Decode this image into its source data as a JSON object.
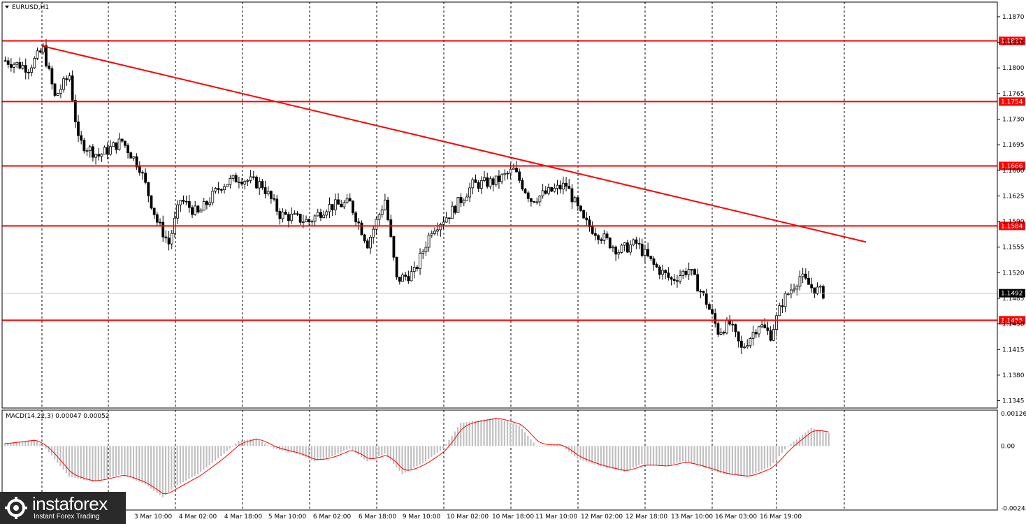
{
  "window": {
    "symbol_title": "EURUSD,H1",
    "current_price": "1.1492"
  },
  "colors": {
    "background": "#ffffff",
    "candle": "#000000",
    "level_line": "#ff0000",
    "trend_line": "#ff0000",
    "grid": "#000000",
    "price_tag_bg": "#ff0000",
    "current_tag_bg": "#000000",
    "macd_hist": "#c0c0c0",
    "macd_signal": "#ff0000"
  },
  "logo": {
    "name": "instaforex",
    "tagline": "Instant Forex Trading"
  },
  "chart_data": [
    {
      "type": "candlestick",
      "title": "EURUSD,H1",
      "ylim": [
        1.1335,
        1.189
      ],
      "price_ticks": [
        "1.1870",
        "1.1835",
        "1.1800",
        "1.1765",
        "1.1730",
        "1.1695",
        "1.1660",
        "1.1625",
        "1.1590",
        "1.1555",
        "1.1520",
        "1.1485",
        "1.1450",
        "1.1415",
        "1.1380",
        "1.1345"
      ],
      "time_labels": [
        "3 Mar 10:00",
        "4 Mar 02:00",
        "4 Mar 18:00",
        "5 Mar 10:00",
        "6 Mar 02:00",
        "6 Mar 18:00",
        "9 Mar 10:00",
        "10 Mar 02:00",
        "10 Mar 18:00",
        "11 Mar 10:00",
        "12 Mar 02:00",
        "12 Mar 18:00",
        "13 Mar 10:00",
        "16 Mar 03:00",
        "16 Mar 19:00"
      ],
      "horizontal_levels": [
        {
          "value": 1.1837,
          "label": "1.1837"
        },
        {
          "value": 1.1754,
          "label": "1.1754"
        },
        {
          "value": 1.1666,
          "label": "1.1666"
        },
        {
          "value": 1.1584,
          "label": "1.1584"
        },
        {
          "value": 1.1455,
          "label": "1.1455"
        }
      ],
      "trend_line": {
        "from": {
          "bar": 13,
          "price": 1.183
        },
        "to": {
          "bar": 295,
          "price": 1.1562
        }
      },
      "current_price": 1.1492,
      "price_path": [
        [
          0,
          1.181
        ],
        [
          8,
          1.18
        ],
        [
          13,
          1.1826
        ],
        [
          17,
          1.176
        ],
        [
          22,
          1.179
        ],
        [
          25,
          1.17
        ],
        [
          32,
          1.168
        ],
        [
          40,
          1.17
        ],
        [
          46,
          1.1665
        ],
        [
          52,
          1.159
        ],
        [
          56,
          1.156
        ],
        [
          60,
          1.162
        ],
        [
          66,
          1.16
        ],
        [
          74,
          1.164
        ],
        [
          80,
          1.165
        ],
        [
          88,
          1.164
        ],
        [
          94,
          1.16
        ],
        [
          104,
          1.159
        ],
        [
          110,
          1.161
        ],
        [
          118,
          1.1615
        ],
        [
          124,
          1.156
        ],
        [
          130,
          1.162
        ],
        [
          134,
          1.151
        ],
        [
          140,
          1.152
        ],
        [
          146,
          1.158
        ],
        [
          152,
          1.16
        ],
        [
          160,
          1.164
        ],
        [
          168,
          1.1645
        ],
        [
          174,
          1.166
        ],
        [
          180,
          1.162
        ],
        [
          186,
          1.163
        ],
        [
          192,
          1.164
        ],
        [
          198,
          1.159
        ],
        [
          204,
          1.157
        ],
        [
          210,
          1.155
        ],
        [
          216,
          1.156
        ],
        [
          222,
          1.153
        ],
        [
          228,
          1.151
        ],
        [
          234,
          1.1525
        ],
        [
          240,
          1.148
        ],
        [
          244,
          1.144
        ],
        [
          248,
          1.145
        ],
        [
          252,
          1.1415
        ],
        [
          258,
          1.145
        ],
        [
          262,
          1.1435
        ],
        [
          266,
          1.148
        ],
        [
          272,
          1.1515
        ],
        [
          276,
          1.15
        ],
        [
          280,
          1.1492
        ]
      ]
    },
    {
      "type": "histogram+line",
      "title": "MACD(14,22,3) 0.00047 0.00052",
      "ylim": [
        -0.0025,
        0.0014
      ],
      "ticks": [
        "0.00126",
        "0.00",
        "-0.00243"
      ],
      "path": [
        [
          0,
          0.0001
        ],
        [
          10,
          0.00025
        ],
        [
          14,
          -0.0001
        ],
        [
          22,
          -0.0012
        ],
        [
          30,
          -0.0014
        ],
        [
          40,
          -0.0011
        ],
        [
          48,
          -0.0015
        ],
        [
          54,
          -0.002
        ],
        [
          58,
          -0.0016
        ],
        [
          66,
          -0.0011
        ],
        [
          74,
          -0.0004
        ],
        [
          80,
          0.0002
        ],
        [
          86,
          0.0003
        ],
        [
          92,
          -0.0001
        ],
        [
          100,
          -0.0003
        ],
        [
          106,
          -0.0006
        ],
        [
          112,
          -0.0004
        ],
        [
          118,
          -0.0001
        ],
        [
          124,
          -0.0006
        ],
        [
          130,
          -0.0003
        ],
        [
          136,
          -0.0011
        ],
        [
          144,
          -0.0006
        ],
        [
          150,
          -0.0001
        ],
        [
          156,
          0.0009
        ],
        [
          162,
          0.001
        ],
        [
          168,
          0.0011
        ],
        [
          176,
          0.0008
        ],
        [
          182,
          0.0
        ],
        [
          190,
          5e-05
        ],
        [
          196,
          -0.0005
        ],
        [
          204,
          -0.0008
        ],
        [
          212,
          -0.001
        ],
        [
          218,
          -0.0007
        ],
        [
          226,
          -0.0008
        ],
        [
          232,
          -0.0006
        ],
        [
          238,
          -0.0008
        ],
        [
          246,
          -0.0011
        ],
        [
          254,
          -0.0012
        ],
        [
          262,
          -0.0008
        ],
        [
          268,
          0.0
        ],
        [
          276,
          0.0007
        ],
        [
          282,
          0.0005
        ]
      ]
    }
  ]
}
